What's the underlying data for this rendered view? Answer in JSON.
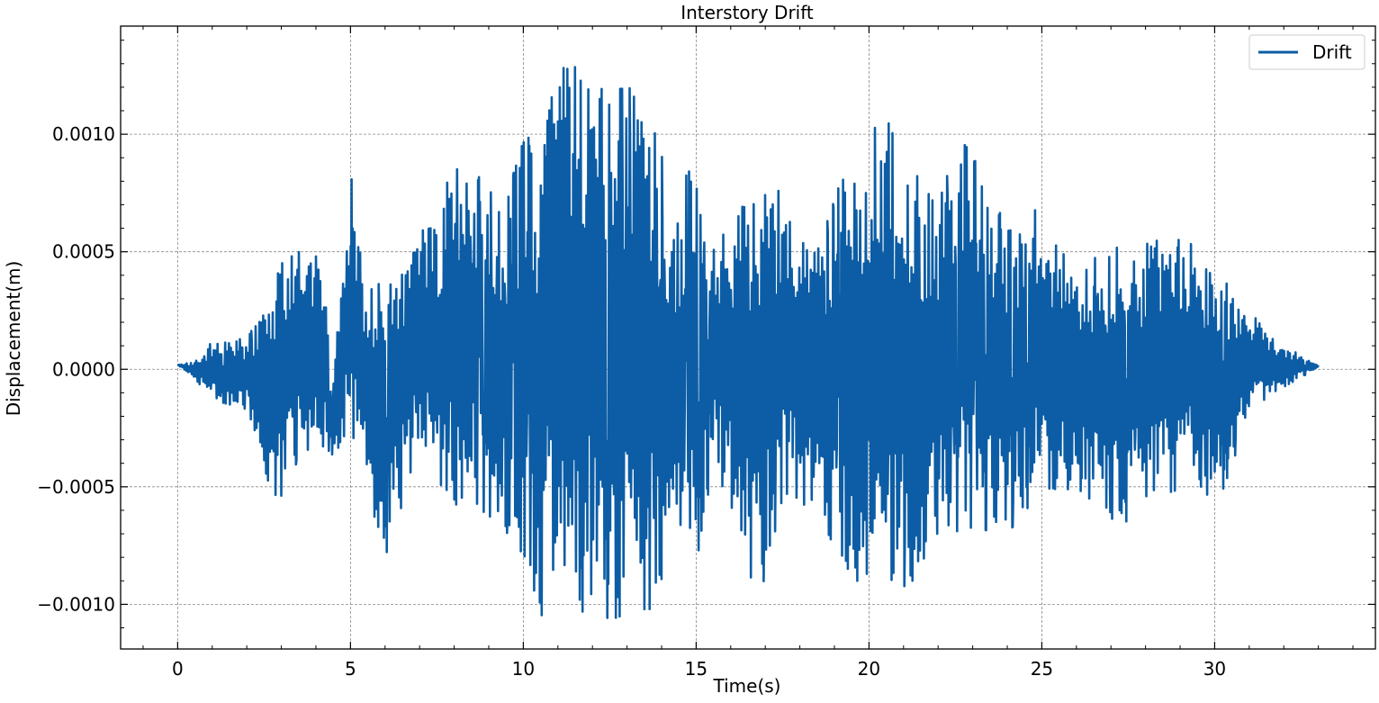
{
  "chart_data": {
    "type": "line",
    "title": "Interstory Drift",
    "xlabel": "Time(s)",
    "ylabel": "Displacement(m)",
    "xlim": [
      -1.65,
      34.65
    ],
    "ylim": [
      -0.00119,
      0.00146
    ],
    "x_ticks": [
      0,
      5,
      10,
      15,
      20,
      25,
      30
    ],
    "x_tick_labels": [
      "0",
      "5",
      "10",
      "15",
      "20",
      "25",
      "30"
    ],
    "y_ticks": [
      -0.001,
      -0.0005,
      0.0,
      0.0005,
      0.001
    ],
    "y_tick_labels": [
      "−0.0010",
      "−0.0005",
      "0.0000",
      "0.0005",
      "0.0010"
    ],
    "grid": true,
    "legend_position": "top-right",
    "series": [
      {
        "name": "Drift",
        "color": "#0c5da5",
        "x_start": 0,
        "x_end": 33,
        "envelope": [
          [
            0,
            2e-05,
            2e-05
          ],
          [
            0.5,
            3e-05,
            -4e-05
          ],
          [
            1.0,
            0.00012,
            -0.00013
          ],
          [
            2.0,
            0.00013,
            -0.00017
          ],
          [
            2.6,
            0.00028,
            -0.00047
          ],
          [
            3.0,
            0.00045,
            -0.0006
          ],
          [
            3.2,
            0.00051,
            -0.00043
          ],
          [
            4.0,
            0.00048,
            -0.00034
          ],
          [
            4.3,
            0.00048,
            -0.00036
          ],
          [
            4.4,
            -0.00014,
            -0.00037
          ],
          [
            5.0,
            0.00084,
            -0.0003
          ],
          [
            5.5,
            0.00035,
            -0.00054
          ],
          [
            6.0,
            0.00037,
            -0.0008
          ],
          [
            7.0,
            0.00062,
            -0.00035
          ],
          [
            7.5,
            0.00065,
            -0.0005
          ],
          [
            8.2,
            0.00099,
            -0.00061
          ],
          [
            8.8,
            0.00079,
            -0.0006
          ],
          [
            9.5,
            0.00069,
            -0.00068
          ],
          [
            10.0,
            0.00102,
            -0.00096
          ],
          [
            10.5,
            0.0009,
            -0.00106
          ],
          [
            11.0,
            0.0013,
            -0.0009
          ],
          [
            11.7,
            0.00134,
            -0.00103
          ],
          [
            12.5,
            0.00119,
            -0.00106
          ],
          [
            13.5,
            0.0012,
            -0.00106
          ],
          [
            14.5,
            0.00062,
            -0.0008
          ],
          [
            15.0,
            0.0011,
            -0.00083
          ],
          [
            15.5,
            0.0006,
            -0.0004
          ],
          [
            16.8,
            0.0008,
            -0.001
          ],
          [
            17.5,
            0.00078,
            -0.00055
          ],
          [
            18.5,
            0.0005,
            -0.00063
          ],
          [
            19.5,
            0.00094,
            -0.0009
          ],
          [
            20.5,
            0.00107,
            -0.0009
          ],
          [
            21.2,
            0.00085,
            -0.00093
          ],
          [
            22.0,
            0.00075,
            -0.00073
          ],
          [
            22.8,
            0.00097,
            -0.00067
          ],
          [
            24.0,
            0.0006,
            -0.0007
          ],
          [
            24.8,
            0.00068,
            -0.00055
          ],
          [
            26.0,
            0.00042,
            -0.0005
          ],
          [
            27.2,
            0.00054,
            -0.00067
          ],
          [
            28.5,
            0.00055,
            -0.00055
          ],
          [
            29.5,
            0.00055,
            -0.00047
          ],
          [
            30.0,
            0.00042,
            -0.00061
          ],
          [
            31.0,
            0.00026,
            -0.0002
          ],
          [
            32.0,
            0.0001,
            -8e-05
          ],
          [
            33.0,
            2e-05,
            1e-05
          ]
        ]
      }
    ]
  }
}
